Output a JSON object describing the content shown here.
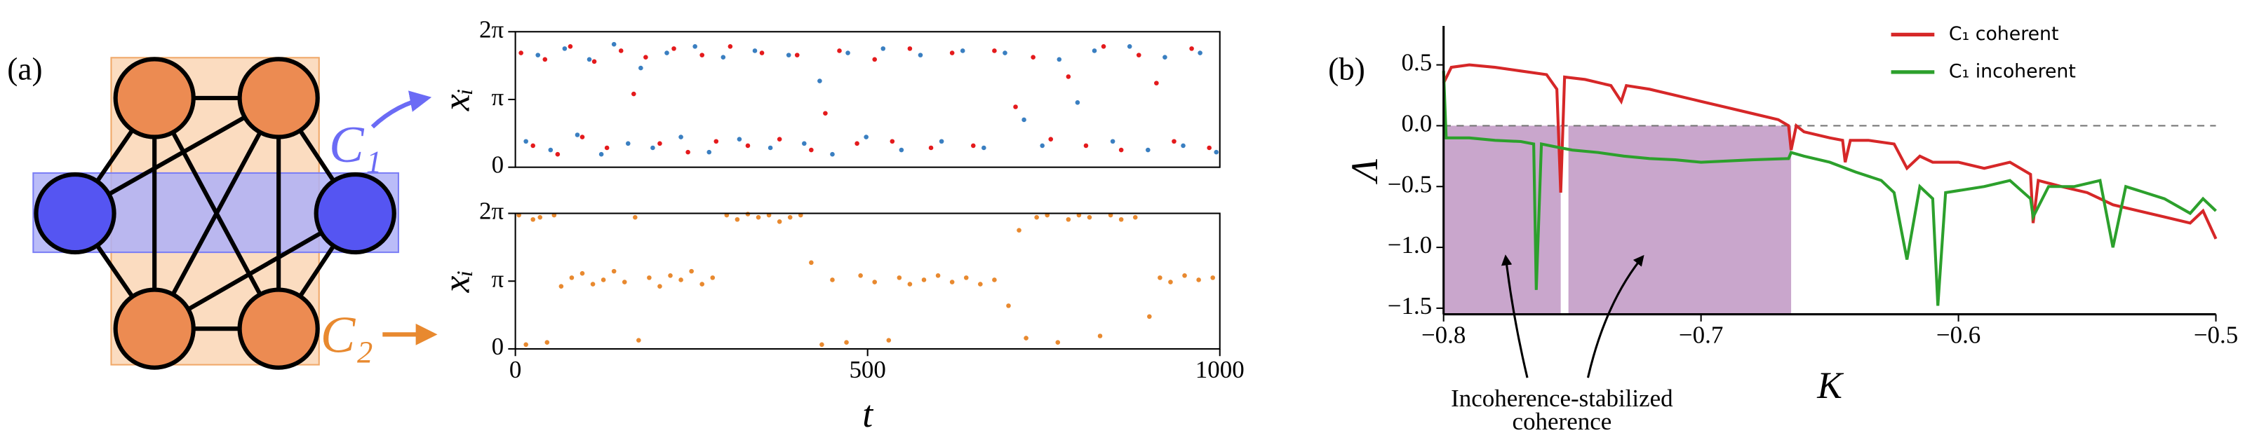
{
  "network": {
    "panel_label": "(a)",
    "sets": [
      "C₁",
      "C₂"
    ]
  },
  "chart_data": [
    {
      "type": "scatter",
      "ylabel": "xᵢ",
      "xlim": [
        0,
        1000
      ],
      "ylim": [
        0,
        6.28319
      ],
      "yticks": [
        0,
        {
          "value": 3.14159,
          "label": "π"
        },
        {
          "value": 6.28319,
          "label": "2π"
        }
      ],
      "series": [
        {
          "color": "#e41a1c",
          "x": [
            8,
            25,
            42,
            60,
            78,
            95,
            112,
            130,
            150,
            168,
            185,
            205,
            225,
            245,
            265,
            285,
            305,
            330,
            350,
            375,
            400,
            420,
            440,
            460,
            485,
            510,
            535,
            560,
            590,
            620,
            650,
            680,
            710,
            735,
            760,
            785,
            810,
            835,
            860,
            885,
            910,
            935,
            960,
            985
          ],
          "y": [
            5.3,
            1.0,
            5.0,
            0.6,
            5.6,
            1.4,
            4.9,
            0.9,
            5.4,
            3.4,
            5.1,
            1.1,
            5.5,
            0.7,
            5.2,
            1.2,
            5.6,
            1.0,
            5.3,
            1.3,
            5.2,
            0.8,
            2.5,
            5.4,
            1.1,
            5.0,
            1.2,
            5.5,
            0.9,
            5.3,
            1.0,
            5.4,
            2.8,
            5.1,
            1.3,
            4.2,
            1.0,
            5.6,
            0.8,
            5.2,
            3.9,
            1.2,
            5.5,
            0.9
          ]
        },
        {
          "color": "#3a7fc1",
          "x": [
            15,
            32,
            50,
            70,
            88,
            105,
            122,
            140,
            160,
            178,
            195,
            215,
            235,
            255,
            275,
            295,
            318,
            340,
            362,
            388,
            410,
            432,
            450,
            472,
            498,
            522,
            548,
            575,
            605,
            635,
            665,
            695,
            722,
            748,
            772,
            798,
            822,
            848,
            872,
            898,
            922,
            948,
            972,
            995
          ],
          "y": [
            1.2,
            5.2,
            0.8,
            5.5,
            1.5,
            5.0,
            0.6,
            5.7,
            1.1,
            4.6,
            0.9,
            5.3,
            1.4,
            5.6,
            0.7,
            5.1,
            1.3,
            5.4,
            0.9,
            5.2,
            1.1,
            4.0,
            0.6,
            5.3,
            1.4,
            5.5,
            0.8,
            5.2,
            1.2,
            5.4,
            0.9,
            5.3,
            2.2,
            1.0,
            5.0,
            3.0,
            5.4,
            1.2,
            5.6,
            0.8,
            5.1,
            1.0,
            5.3,
            0.7
          ]
        }
      ]
    },
    {
      "type": "scatter",
      "ylabel": "xᵢ",
      "xlabel": "t",
      "xlim": [
        0,
        1000
      ],
      "xticks": [
        0,
        500,
        1000
      ],
      "ylim": [
        0,
        6.28319
      ],
      "yticks": [
        0,
        {
          "value": 3.14159,
          "label": "π"
        },
        {
          "value": 6.28319,
          "label": "2π"
        }
      ],
      "series": [
        {
          "color": "#e8892f",
          "x": [
            5,
            15,
            25,
            35,
            45,
            55,
            65,
            80,
            95,
            110,
            125,
            140,
            155,
            170,
            175,
            190,
            205,
            220,
            235,
            250,
            265,
            280,
            300,
            315,
            330,
            345,
            360,
            375,
            390,
            405,
            420,
            435,
            450,
            470,
            490,
            510,
            530,
            545,
            560,
            580,
            600,
            620,
            640,
            660,
            680,
            700,
            715,
            725,
            740,
            755,
            770,
            785,
            800,
            815,
            830,
            845,
            860,
            880,
            900,
            915,
            930,
            950,
            970,
            990
          ],
          "y": [
            6.2,
            0.2,
            6.0,
            6.1,
            0.3,
            6.2,
            2.9,
            3.3,
            3.5,
            3.0,
            3.2,
            3.6,
            3.1,
            6.1,
            0.4,
            3.3,
            2.9,
            3.4,
            3.2,
            3.6,
            3.0,
            3.3,
            6.2,
            6.0,
            6.25,
            6.1,
            6.2,
            5.9,
            6.1,
            6.2,
            4.0,
            0.2,
            3.2,
            0.3,
            3.4,
            3.1,
            0.4,
            3.3,
            3.0,
            3.2,
            3.4,
            3.1,
            3.3,
            3.0,
            3.2,
            2.0,
            5.5,
            0.5,
            6.1,
            6.2,
            0.3,
            6.0,
            6.2,
            6.1,
            0.6,
            6.2,
            6.0,
            6.1,
            1.5,
            3.3,
            3.1,
            3.4,
            3.2,
            3.3
          ]
        }
      ]
    },
    {
      "type": "line",
      "panel_label": "(b)",
      "xlabel": "K",
      "ylabel": "Λ",
      "legend": "upper right",
      "xlim": [
        -0.8,
        -0.5
      ],
      "ylim": [
        -1.55,
        0.82
      ],
      "xticks": [
        {
          "value": -0.8,
          "label": "−0.8"
        },
        {
          "value": -0.7,
          "label": "−0.7"
        },
        {
          "value": -0.6,
          "label": "−0.6"
        },
        {
          "value": -0.5,
          "label": "−0.5"
        }
      ],
      "yticks": [
        0.5,
        {
          "value": 0,
          "label": "0.0"
        },
        {
          "value": -0.5,
          "label": "−0.5"
        },
        {
          "value": -1.0,
          "label": "−1.0"
        },
        {
          "value": -1.5,
          "label": "−1.5"
        }
      ],
      "hline": 0,
      "spans": [
        [
          -0.8,
          -0.7545
        ],
        [
          -0.7515,
          -0.665
        ]
      ],
      "span_color": "#c9a6cc",
      "annotation": [
        "Incoherence-stabilized",
        "coherence"
      ],
      "series": [
        {
          "name": "C₁ coherent",
          "color": "#d62728",
          "x": [
            -0.8,
            -0.797,
            -0.79,
            -0.78,
            -0.77,
            -0.76,
            -0.756,
            -0.7545,
            -0.753,
            -0.745,
            -0.735,
            -0.731,
            -0.729,
            -0.72,
            -0.71,
            -0.7,
            -0.69,
            -0.68,
            -0.67,
            -0.666,
            -0.665,
            -0.663,
            -0.66,
            -0.65,
            -0.645,
            -0.644,
            -0.642,
            -0.635,
            -0.625,
            -0.62,
            -0.615,
            -0.61,
            -0.6,
            -0.59,
            -0.58,
            -0.572,
            -0.571,
            -0.569,
            -0.56,
            -0.55,
            -0.54,
            -0.53,
            -0.52,
            -0.51,
            -0.505,
            -0.5
          ],
          "values": [
            0.35,
            0.48,
            0.5,
            0.48,
            0.45,
            0.42,
            0.3,
            -0.55,
            0.4,
            0.38,
            0.33,
            0.2,
            0.33,
            0.3,
            0.25,
            0.2,
            0.15,
            0.1,
            0.05,
            0.0,
            -0.2,
            0.0,
            -0.05,
            -0.1,
            -0.12,
            -0.3,
            -0.12,
            -0.12,
            -0.15,
            -0.35,
            -0.25,
            -0.3,
            -0.3,
            -0.35,
            -0.3,
            -0.4,
            -0.8,
            -0.45,
            -0.5,
            -0.55,
            -0.65,
            -0.7,
            -0.75,
            -0.8,
            -0.7,
            -0.93
          ]
        },
        {
          "name": "C₁ incoherent",
          "color": "#2ca02c",
          "x": [
            -0.8,
            -0.799,
            -0.79,
            -0.78,
            -0.77,
            -0.765,
            -0.764,
            -0.762,
            -0.755,
            -0.75,
            -0.74,
            -0.73,
            -0.72,
            -0.71,
            -0.7,
            -0.69,
            -0.68,
            -0.666,
            -0.665,
            -0.66,
            -0.65,
            -0.64,
            -0.63,
            -0.625,
            -0.62,
            -0.615,
            -0.61,
            -0.608,
            -0.605,
            -0.59,
            -0.58,
            -0.572,
            -0.571,
            -0.565,
            -0.555,
            -0.545,
            -0.54,
            -0.535,
            -0.52,
            -0.51,
            -0.505,
            -0.5
          ],
          "values": [
            0.45,
            -0.1,
            -0.1,
            -0.12,
            -0.13,
            -0.15,
            -1.35,
            -0.15,
            -0.18,
            -0.2,
            -0.22,
            -0.25,
            -0.27,
            -0.28,
            -0.3,
            -0.29,
            -0.28,
            -0.27,
            -0.22,
            -0.25,
            -0.3,
            -0.38,
            -0.45,
            -0.55,
            -1.1,
            -0.5,
            -0.6,
            -1.48,
            -0.55,
            -0.5,
            -0.45,
            -0.6,
            -0.75,
            -0.5,
            -0.5,
            -0.45,
            -1.0,
            -0.5,
            -0.6,
            -0.72,
            -0.6,
            -0.7
          ]
        }
      ]
    }
  ]
}
